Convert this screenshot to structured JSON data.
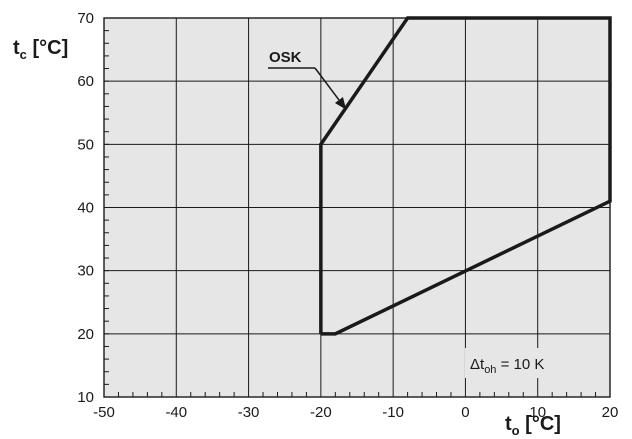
{
  "chart_data": {
    "type": "line",
    "title": "",
    "xlabel": {
      "main": "t",
      "sub": "o",
      "unit": " [°C]"
    },
    "ylabel": {
      "main": "t",
      "sub": "c",
      "unit": " [°C]"
    },
    "xlim": [
      -50,
      20
    ],
    "ylim": [
      10,
      70
    ],
    "x_ticks": [
      -50,
      -40,
      -30,
      -20,
      -10,
      0,
      10,
      20
    ],
    "y_ticks": [
      10,
      20,
      30,
      40,
      50,
      60,
      70
    ],
    "x_tick_labels": [
      "-50",
      "-40",
      "-30",
      "-20",
      "-10",
      "0",
      "10",
      "20"
    ],
    "y_tick_labels": [
      "10",
      "20",
      "30",
      "40",
      "50",
      "60",
      "70"
    ],
    "grid": true,
    "series": [
      {
        "values": [
          [
            -20,
            20
          ],
          [
            -20,
            50
          ],
          [
            -8,
            70
          ],
          [
            20,
            70
          ],
          [
            20,
            41
          ],
          [
            -18,
            20
          ],
          [
            -20,
            20
          ]
        ]
      }
    ],
    "annotations": [
      {
        "text": "OSK",
        "points_to": [
          -16.5,
          55.5
        ]
      }
    ],
    "note": {
      "prefix": "Δt",
      "sub": "oh",
      "suffix": " = 10 K"
    },
    "colors": {
      "line": "#1a1a1a",
      "grid": "#1a1a1a",
      "background": "#e6e6e6"
    }
  }
}
